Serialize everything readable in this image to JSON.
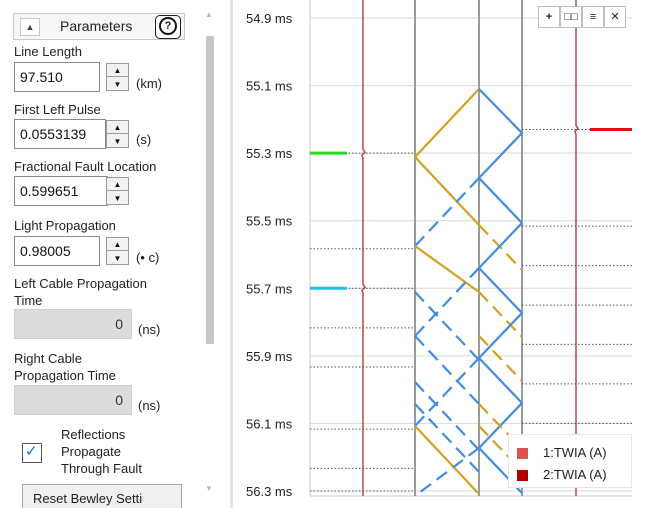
{
  "panel": {
    "header": {
      "title": "Parameters",
      "collapse_glyph": "▲",
      "help_glyph": "?"
    },
    "fields": [
      {
        "label": "Line Length",
        "value": "97.510",
        "unit": "(km)"
      },
      {
        "label": "First Left Pulse",
        "value": "0.0553139",
        "unit": "(s)"
      },
      {
        "label": "Fractional Fault Location",
        "value": "0.599651",
        "unit": ""
      },
      {
        "label": "Light Propagation",
        "value": "0.98005",
        "unit": "(• c)"
      }
    ],
    "cable_fields": [
      {
        "label_line1": "Left Cable Propagation",
        "label_line2": "Time",
        "value": "0",
        "unit": "(ns)"
      },
      {
        "label_line1": "Right Cable",
        "label_line2": "Propagation Time",
        "value": "0",
        "unit": "(ns)"
      }
    ],
    "checkbox": {
      "checked": true,
      "label_lines": [
        "Reflections",
        "Propagate",
        "Through Fault"
      ]
    },
    "reset_button": "Reset Bewley Setti"
  },
  "toolbar": {
    "buttons": [
      "+",
      "□□",
      "≡",
      "✕"
    ]
  },
  "legend": [
    {
      "label": "1:TWIA (A)",
      "color": "#d9534f"
    },
    {
      "label": "2:TWIA (A)",
      "color": "#b00000"
    }
  ],
  "chart_data": {
    "type": "line",
    "y_tick_labels": [
      "54.9 ms",
      "55.1 ms",
      "55.3 ms",
      "55.5 ms",
      "55.7 ms",
      "55.9 ms",
      "56.1 ms",
      "56.3 ms"
    ],
    "y_ticks": [
      54.9,
      55.1,
      55.3,
      55.5,
      55.7,
      55.9,
      56.1,
      56.3
    ],
    "ylim": [
      54.9,
      56.3
    ],
    "colors": {
      "solid_blue": "#3f8de0",
      "gold": "#d4a020",
      "trace": "#b5484b",
      "green_marker": "#22dd22",
      "cyan_marker": "#22c0e8",
      "red_marker": "#e01010",
      "gray_line": "#9a9a9a",
      "dotted": "#555555"
    },
    "left_markers": [
      {
        "y": 55.3,
        "color": "#22dd22"
      },
      {
        "y": 55.7,
        "color": "#22c0e8"
      }
    ],
    "right_marker": {
      "y": 55.23,
      "color": "#e01010"
    },
    "dotted_left_levels": [
      55.3,
      55.583,
      55.7,
      55.817,
      55.933,
      56.117,
      56.233,
      56.3
    ],
    "dotted_right_levels": [
      55.23,
      55.516,
      55.633,
      55.75,
      55.866,
      55.983,
      56.1,
      56.283
    ]
  }
}
